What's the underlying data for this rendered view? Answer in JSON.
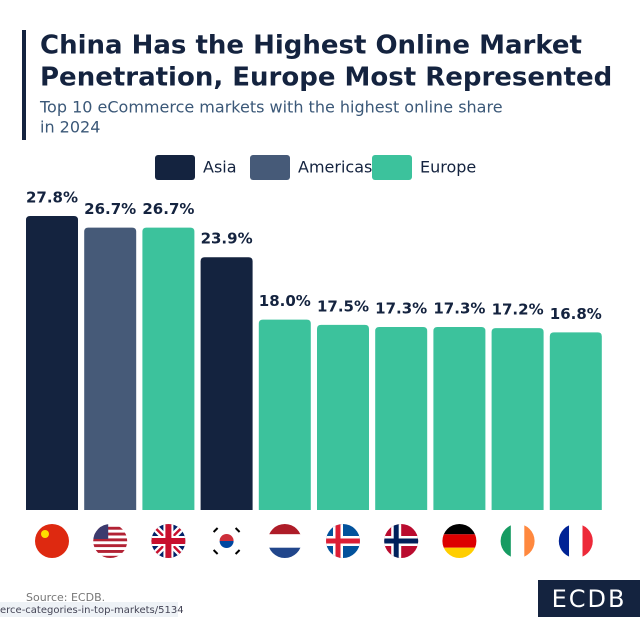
{
  "chart_data": {
    "type": "bar",
    "title": [
      "China Has the Highest Online Market",
      "Penetration, Europe Most Represented"
    ],
    "subtitle": [
      "Top 10 eCommerce markets with the highest online share",
      "in 2024"
    ],
    "categories": [
      null,
      null,
      null,
      null,
      null,
      null,
      null,
      null,
      null,
      null
    ],
    "series": [
      {
        "name": "Asia",
        "color": "#14233f",
        "values": [
          27.8,
          null,
          null,
          23.9,
          null,
          null,
          null,
          null,
          null,
          null
        ],
        "value_labels": [
          "27.8%",
          null,
          null,
          "23.9%",
          null,
          null,
          null,
          null,
          null,
          null
        ]
      },
      {
        "name": "Americas",
        "color": "#465a78",
        "values": [
          null,
          26.7,
          null,
          null,
          null,
          null,
          null,
          null,
          null,
          null
        ],
        "value_labels": [
          null,
          "26.7%",
          null,
          null,
          null,
          null,
          null,
          null,
          null,
          null
        ]
      },
      {
        "name": "Europe",
        "color": "#3cc29c",
        "values": [
          null,
          null,
          26.7,
          null,
          18.0,
          17.5,
          17.3,
          17.3,
          17.2,
          16.8
        ],
        "value_labels": [
          null,
          null,
          "26.7%",
          null,
          "18.0%",
          "17.5%",
          "17.3%",
          "17.3%",
          "17.2%",
          "16.8%"
        ]
      }
    ],
    "source": "Source: ECDB.",
    "url": "erce-categories-in-top-markets/5134",
    "logo": "ECDB"
  }
}
